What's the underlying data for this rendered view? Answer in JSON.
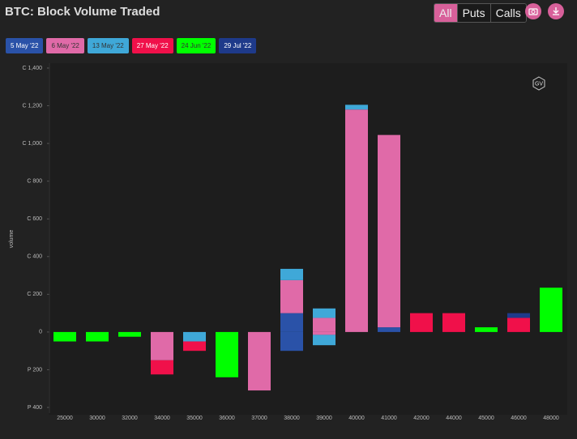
{
  "chart_data": {
    "type": "stacked-bar",
    "title": "BTC: Block Volume Traded",
    "y_label": "volume",
    "categories": [
      "25000",
      "30000",
      "32000",
      "34000",
      "35000",
      "36000",
      "37000",
      "38000",
      "39000",
      "40000",
      "41000",
      "42000",
      "44000",
      "45000",
      "46000",
      "48000"
    ],
    "series": [
      {
        "name": "5 May '22",
        "color": "#2a52a8",
        "call_values": [
          null,
          null,
          null,
          null,
          null,
          null,
          null,
          100,
          null,
          null,
          25,
          null,
          null,
          null,
          null,
          null
        ],
        "put_values": [
          null,
          null,
          null,
          null,
          null,
          null,
          null,
          -100,
          null,
          null,
          null,
          null,
          null,
          null,
          null,
          null
        ]
      },
      {
        "name": "6 May '22",
        "color": "#e06aa8",
        "call_values": [
          null,
          null,
          null,
          null,
          null,
          null,
          null,
          175,
          75,
          1180,
          1020,
          null,
          null,
          null,
          null,
          null
        ],
        "put_values": [
          null,
          null,
          null,
          -150,
          null,
          null,
          -310,
          null,
          -15,
          null,
          null,
          null,
          null,
          null,
          null,
          null
        ]
      },
      {
        "name": "13 May '22",
        "color": "#3fa8d8",
        "call_values": [
          null,
          null,
          null,
          null,
          null,
          null,
          null,
          60,
          50,
          25,
          null,
          null,
          null,
          null,
          null,
          null
        ],
        "put_values": [
          null,
          null,
          null,
          null,
          -50,
          null,
          null,
          null,
          -55,
          null,
          null,
          null,
          null,
          null,
          null,
          null
        ]
      },
      {
        "name": "27 May '22",
        "color": "#f0104a",
        "call_values": [
          null,
          null,
          null,
          null,
          null,
          null,
          null,
          null,
          null,
          null,
          null,
          100,
          100,
          null,
          75,
          null
        ],
        "put_values": [
          null,
          null,
          null,
          -75,
          -50,
          null,
          null,
          null,
          null,
          null,
          null,
          null,
          null,
          null,
          null,
          null
        ]
      },
      {
        "name": "24 Jun '22",
        "color": "#00ff00",
        "call_values": [
          null,
          null,
          null,
          null,
          null,
          null,
          null,
          null,
          null,
          null,
          null,
          null,
          null,
          25,
          null,
          235
        ],
        "put_values": [
          -50,
          -50,
          -25,
          null,
          null,
          -240,
          null,
          null,
          null,
          null,
          null,
          null,
          null,
          null,
          null,
          null
        ]
      },
      {
        "name": "29 Jul '22",
        "color": "#1e3a8a",
        "call_values": [
          null,
          null,
          null,
          null,
          null,
          null,
          null,
          null,
          null,
          null,
          null,
          null,
          null,
          null,
          25,
          null
        ],
        "put_values": [
          null,
          null,
          null,
          null,
          null,
          null,
          null,
          null,
          null,
          null,
          null,
          null,
          null,
          null,
          null,
          null
        ]
      }
    ],
    "ylim": [
      -430,
      1400
    ],
    "yticks": [
      {
        "value": 1400,
        "label": "C 1,400"
      },
      {
        "value": 1200,
        "label": "C 1,200"
      },
      {
        "value": 1000,
        "label": "C 1,000"
      },
      {
        "value": 800,
        "label": "C 800"
      },
      {
        "value": 600,
        "label": "C 600"
      },
      {
        "value": 400,
        "label": "C 400"
      },
      {
        "value": 200,
        "label": "C 200"
      },
      0,
      {
        "value": -200,
        "label": "P 200"
      },
      {
        "value": -400,
        "label": "P 400"
      }
    ],
    "grid": false
  },
  "toolbar": {
    "filters": [
      "All",
      "Puts",
      "Calls"
    ],
    "active": 0,
    "logo": "GV"
  }
}
